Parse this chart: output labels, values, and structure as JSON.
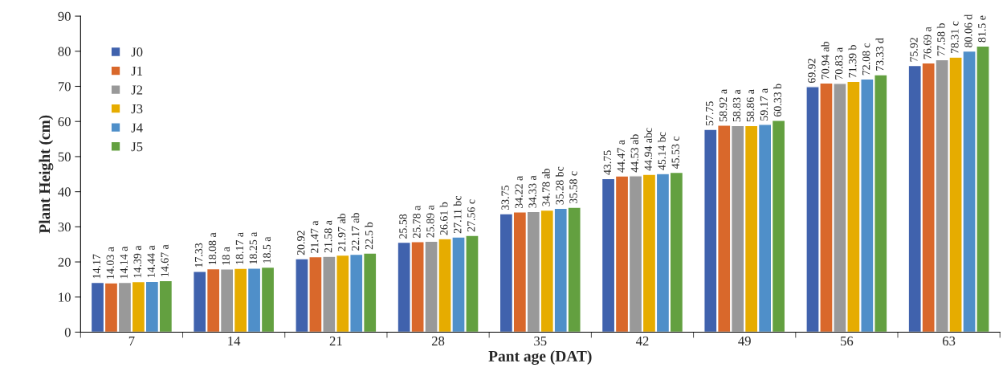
{
  "chart_data": {
    "type": "bar",
    "xlabel": "Pant age (DAT)",
    "ylabel": "Plant Height (cm)",
    "categories": [
      "7",
      "14",
      "21",
      "28",
      "35",
      "42",
      "49",
      "56",
      "63"
    ],
    "ylim": [
      0,
      90
    ],
    "yticks": [
      0,
      10,
      20,
      30,
      40,
      50,
      60,
      70,
      80,
      90
    ],
    "grid": false,
    "legend": "top left",
    "series": [
      {
        "name": "J0",
        "color": "#4062ad",
        "values": [
          14.17,
          17.33,
          20.92,
          25.58,
          33.75,
          43.75,
          57.75,
          69.92,
          75.92
        ],
        "value_labels": [
          "14.17",
          "17.33",
          "20.92",
          "25.58",
          "33.75",
          "43.75",
          "57.75",
          "69.92",
          "75.92"
        ]
      },
      {
        "name": "J1",
        "color": "#d9682b",
        "values": [
          14.03,
          18.08,
          21.47,
          25.78,
          34.22,
          44.47,
          58.92,
          70.94,
          76.69
        ],
        "value_labels": [
          "14.03 a",
          "18.08 a",
          "21.47 a",
          "25.78 a",
          "34.22 a",
          "44.47 a",
          "58.92 a",
          "70.94 ab",
          "76.69 a"
        ]
      },
      {
        "name": "J2",
        "color": "#999999",
        "values": [
          14.14,
          18,
          21.58,
          25.89,
          34.33,
          44.53,
          58.83,
          70.83,
          77.58
        ],
        "value_labels": [
          "14.14 a",
          "18 a",
          "21.58 a",
          "25.89 a",
          "34.33 a",
          "44.53 ab",
          "58.83 a",
          "70.83 a",
          "77.58 b"
        ]
      },
      {
        "name": "J3",
        "color": "#e6ac00",
        "values": [
          14.39,
          18.17,
          21.97,
          26.61,
          34.78,
          44.94,
          58.86,
          71.39,
          78.31
        ],
        "value_labels": [
          "14.39 a",
          "18.17 a",
          "21.97 ab",
          "26.61 b",
          "34.78 ab",
          "44.94 abc",
          "58.86 a",
          "71.39 b",
          "78.31 c"
        ]
      },
      {
        "name": "J4",
        "color": "#4f8fc9",
        "values": [
          14.44,
          18.25,
          22.17,
          27.11,
          35.28,
          45.14,
          59.17,
          72.08,
          80.06
        ],
        "value_labels": [
          "14.44 a",
          "18.25 a",
          "22.17 ab",
          "27.11 bc",
          "35.28 bc",
          "45.14 bc",
          "59.17 a",
          "72.08 c",
          "80.06 d"
        ]
      },
      {
        "name": "J5",
        "color": "#63a040",
        "values": [
          14.67,
          18.5,
          22.5,
          27.56,
          35.58,
          45.53,
          60.33,
          73.33,
          81.5
        ],
        "value_labels": [
          "14.67 a",
          "18.5 a",
          "22.5 b",
          "27.56 c",
          "35.58 c",
          "45.53 c",
          "60.33 b",
          "73.33 d",
          "81.5 e"
        ]
      }
    ]
  }
}
